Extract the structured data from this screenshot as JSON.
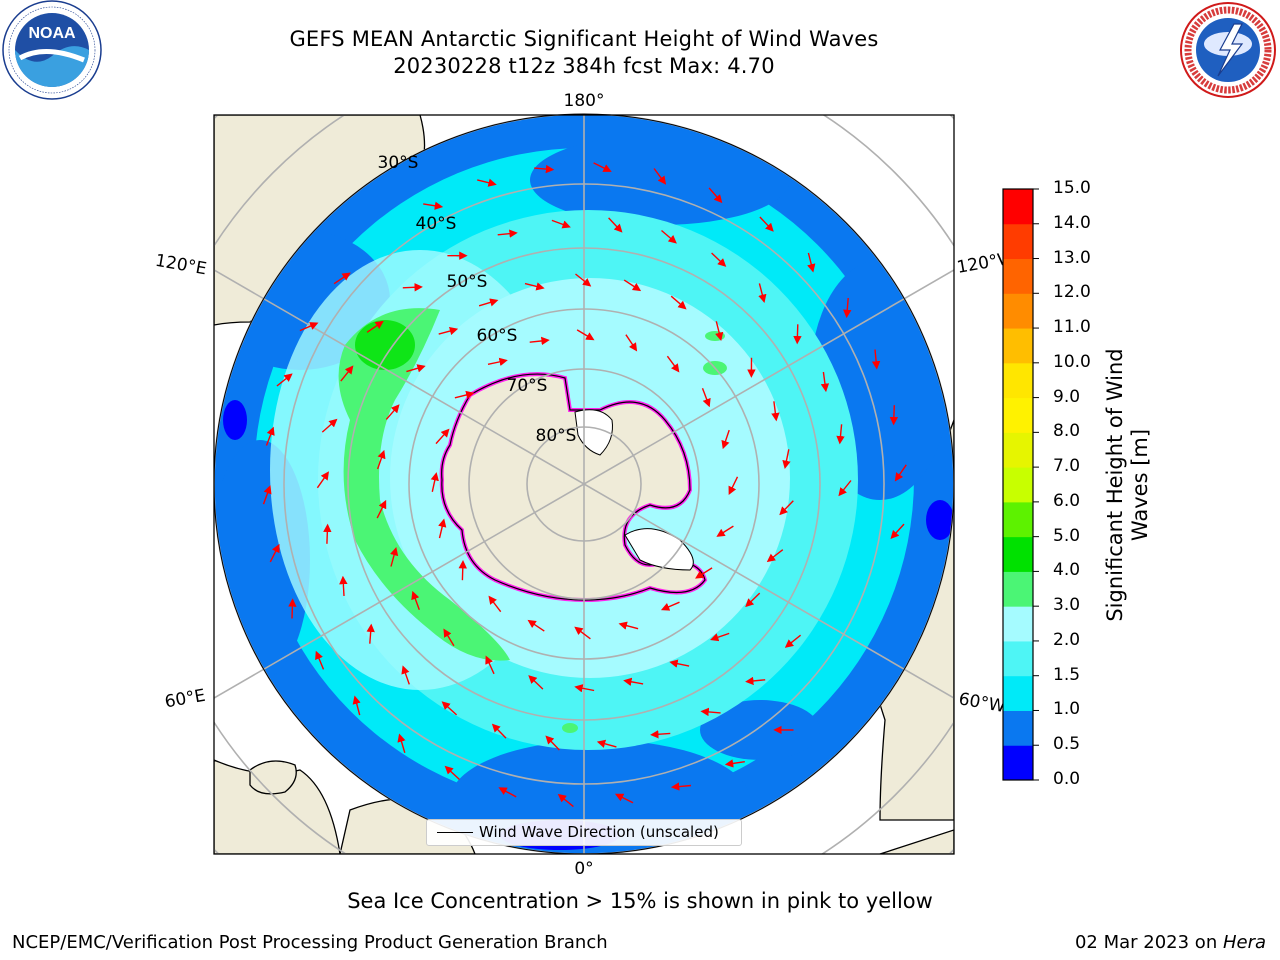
{
  "header": {
    "title_line1": "GEFS MEAN Antarctic Significant Height of Wind Waves",
    "title_line2": "20230228 t12z 384h fcst   Max: 4.70"
  },
  "logos": {
    "noaa_text": "NOAA",
    "noaa_ring_text": "NATIONAL OCEANIC AND ATMOSPHERIC ADMINISTRATION · U.S. DEPARTMENT OF COMMERCE",
    "nws_ring_text": "NATIONAL WEATHER SERVICE"
  },
  "map": {
    "projection": "south-polar-stereographic",
    "meridian_labels": {
      "top": "180°",
      "bottom": "0°",
      "upper_left": "120°E",
      "lower_left": "60°E",
      "upper_right": "120°W",
      "lower_right": "60°W"
    },
    "latitude_labels": [
      "30°S",
      "40°S",
      "50°S",
      "60°S",
      "70°S",
      "80°S"
    ],
    "colors": {
      "land": "#efebd8",
      "antarctic_ice_shelf": "#ffffff",
      "sea_ice_edge": "#ff22ee",
      "grid": "#b0b0b0",
      "arrows": "#ff0000"
    },
    "legend_label": "Wind Wave Direction (unscaled)"
  },
  "colorbar": {
    "title": "Significant Height of Wind Waves [m]",
    "tick_labels": [
      "0.0",
      "0.5",
      "1.0",
      "1.5",
      "2.0",
      "3.0",
      "4.0",
      "5.0",
      "6.0",
      "7.0",
      "8.0",
      "9.0",
      "10.0",
      "11.0",
      "12.0",
      "13.0",
      "14.0",
      "15.0"
    ],
    "colors": [
      "#0000ff",
      "#0a78f0",
      "#00eaf8",
      "#4ef5f5",
      "#a5fbff",
      "#4bf575",
      "#00e100",
      "#5df200",
      "#c8ff00",
      "#e6f500",
      "#fff200",
      "#ffe600",
      "#ffbe00",
      "#ff8c00",
      "#ff6400",
      "#ff3c00",
      "#ff0000"
    ]
  },
  "caption": "Sea Ice Concentration > 15% is shown in pink to yellow",
  "footer": {
    "left": "NCEP/EMC/Verification Post Processing Product Generation Branch",
    "right_date": "02 Mar 2023 on ",
    "right_host": "Hera"
  }
}
